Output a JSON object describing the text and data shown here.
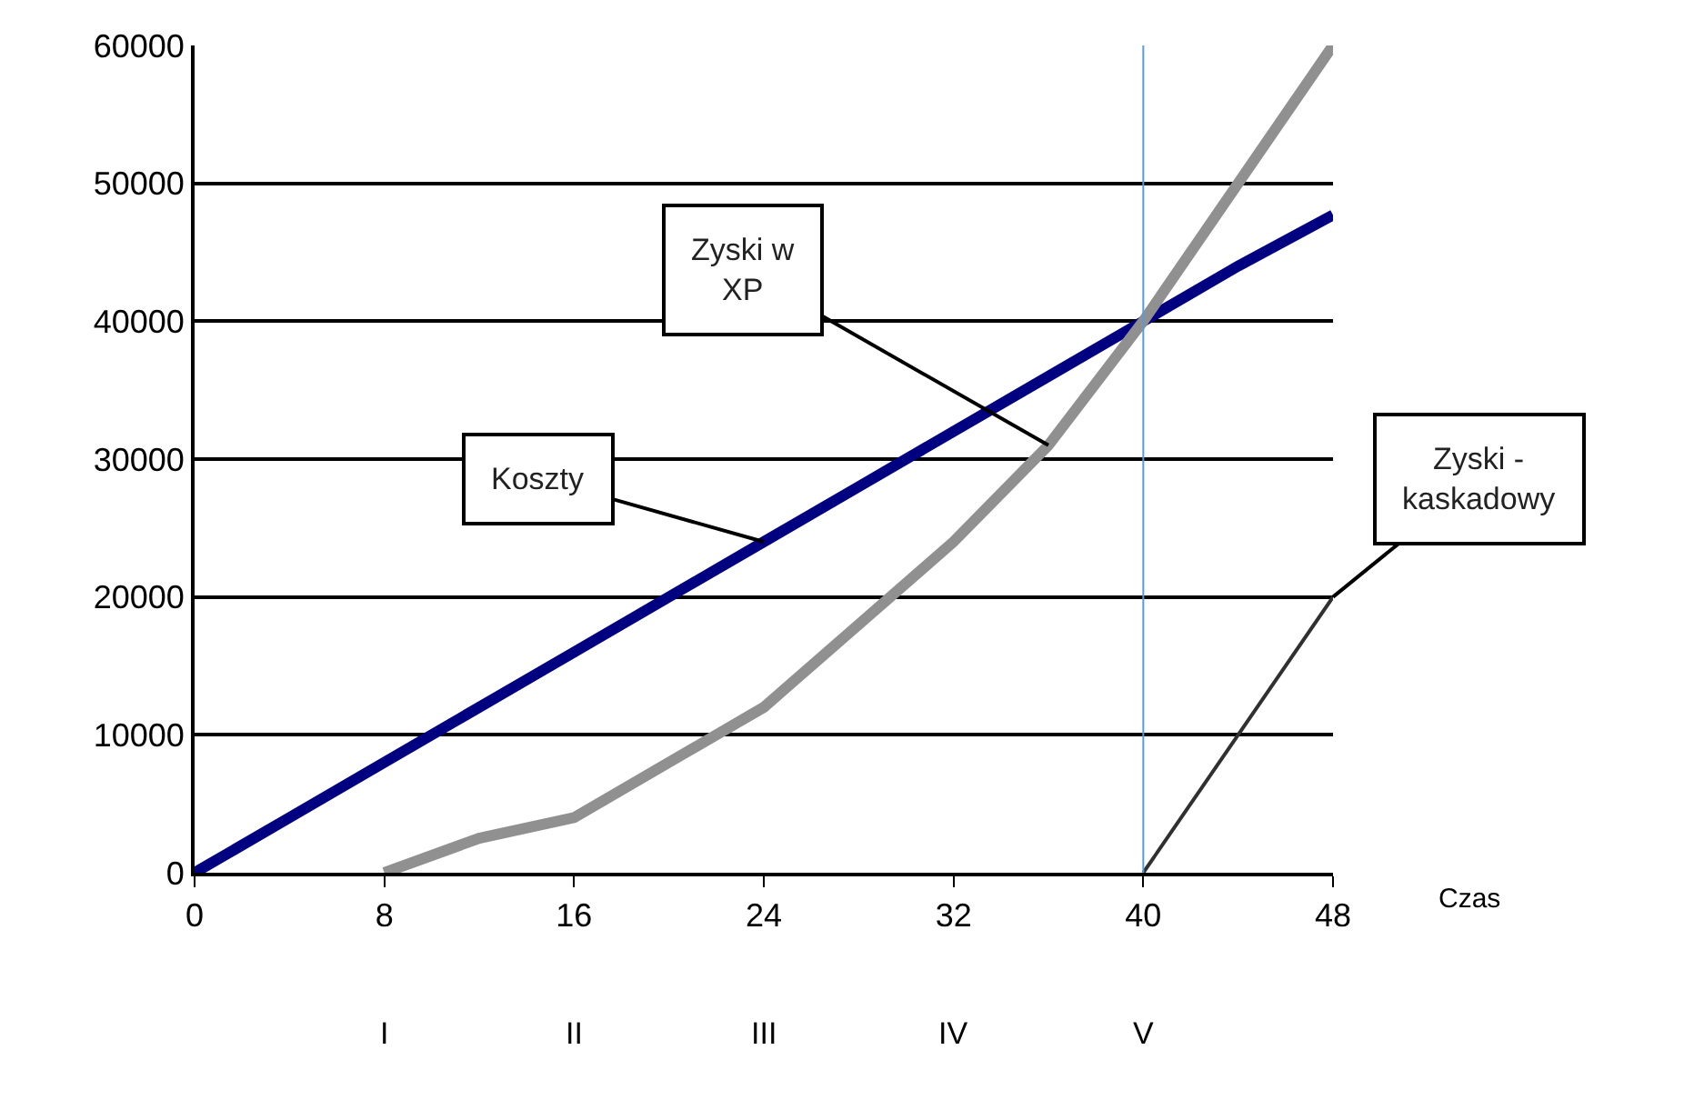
{
  "chart_data": {
    "type": "line",
    "xlabel": "Czas",
    "xlim": [
      0,
      48
    ],
    "xticks": [
      0,
      8,
      16,
      24,
      32,
      40,
      48
    ],
    "ylim": [
      0,
      60000
    ],
    "yticks": [
      0,
      10000,
      20000,
      30000,
      40000,
      50000,
      60000
    ],
    "grid": "y",
    "marker": "none",
    "line_style": "solid",
    "series": [
      {
        "color": "#000080",
        "x": [
          0,
          4,
          8,
          12,
          16,
          20,
          24,
          28,
          32,
          36,
          40,
          44,
          48
        ],
        "values": [
          0,
          4000,
          8000,
          12000,
          16000,
          20000,
          24000,
          28000,
          32000,
          36000,
          40000,
          44000,
          47700
        ]
      },
      {
        "color": "#909090",
        "x": [
          8,
          12,
          16,
          20,
          24,
          28,
          32,
          36,
          40,
          44,
          48
        ],
        "values": [
          0,
          2500,
          4000,
          8000,
          12000,
          18000,
          24000,
          31000,
          40000,
          50000,
          60000
        ]
      },
      {
        "color": "#303030",
        "x": [
          40,
          44,
          48
        ],
        "values": [
          0,
          10000,
          20000
        ]
      }
    ],
    "ref_lines": [
      {
        "axis": "x",
        "value": 40,
        "color": "#5b9bd5"
      }
    ],
    "annotations": [
      {
        "text": "Koszty",
        "x": 24,
        "y": 24000
      },
      {
        "text": "Zyski w\nXP",
        "x": 36,
        "y": 31000
      },
      {
        "text": "Zyski -\nkaskadowy",
        "x": 48,
        "y": 20000
      },
      "I",
      "II",
      "III",
      "IV",
      "V"
    ]
  }
}
